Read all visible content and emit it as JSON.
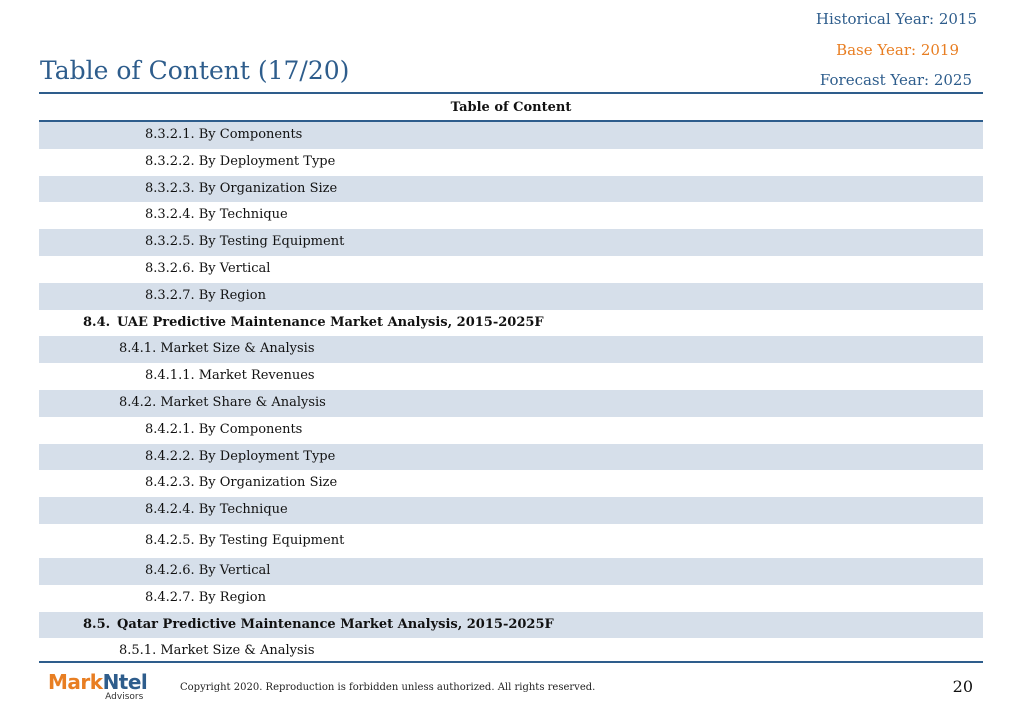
{
  "header": {
    "historical_year": "Historical Year: 2015",
    "base_year": "Base Year: 2019",
    "forecast_year": "Forecast Year: 2025",
    "title": "Table of Content (17/20)"
  },
  "table": {
    "heading": "Table of Content",
    "rows": [
      {
        "text": "8.3.2.1. By Components",
        "level": 3,
        "shade": true
      },
      {
        "text": "8.3.2.2. By Deployment Type",
        "level": 3,
        "shade": false
      },
      {
        "text": "8.3.2.3. By Organization Size",
        "level": 3,
        "shade": true
      },
      {
        "text": "8.3.2.4. By Technique",
        "level": 3,
        "shade": false
      },
      {
        "text": "8.3.2.5. By Testing Equipment",
        "level": 3,
        "shade": true
      },
      {
        "text": "8.3.2.6. By Vertical",
        "level": 3,
        "shade": false
      },
      {
        "text": "8.3.2.7. By Region",
        "level": 3,
        "shade": true
      },
      {
        "num": "8.4.",
        "text": "UAE Predictive Maintenance Market Analysis, 2015-2025F",
        "level": 1,
        "shade": false
      },
      {
        "text": "8.4.1. Market Size & Analysis",
        "level": 2,
        "shade": true
      },
      {
        "text": "8.4.1.1. Market Revenues",
        "level": 3,
        "shade": false
      },
      {
        "text": "8.4.2. Market Share & Analysis",
        "level": 2,
        "shade": true
      },
      {
        "text": "8.4.2.1. By Components",
        "level": 3,
        "shade": false
      },
      {
        "text": "8.4.2.2. By Deployment Type",
        "level": 3,
        "shade": true
      },
      {
        "text": "8.4.2.3. By Organization Size",
        "level": 3,
        "shade": false
      },
      {
        "text": "8.4.2.4. By Technique",
        "level": 3,
        "shade": true
      },
      {
        "text": "8.4.2.5. By Testing Equipment",
        "level": 3,
        "shade": false,
        "tall": true
      },
      {
        "text": "8.4.2.6. By Vertical",
        "level": 3,
        "shade": true
      },
      {
        "text": "8.4.2.7. By Region",
        "level": 3,
        "shade": false
      },
      {
        "num": "8.5.",
        "text": "Qatar Predictive Maintenance Market Analysis, 2015-2025F",
        "level": 1,
        "shade": true
      },
      {
        "text": "8.5.1. Market Size & Analysis",
        "level": 2,
        "shade": false
      }
    ]
  },
  "footer": {
    "logo_part1": "Mark",
    "logo_part2": "Ntel",
    "logo_sub": "Advisors",
    "copyright": "Copyright 2020. Reproduction is forbidden unless authorized. All rights reserved.",
    "page_number": "20"
  },
  "colors": {
    "accent_blue": "#2e5d8c",
    "accent_orange": "#e87e22",
    "row_shade": "#d6dfea"
  }
}
